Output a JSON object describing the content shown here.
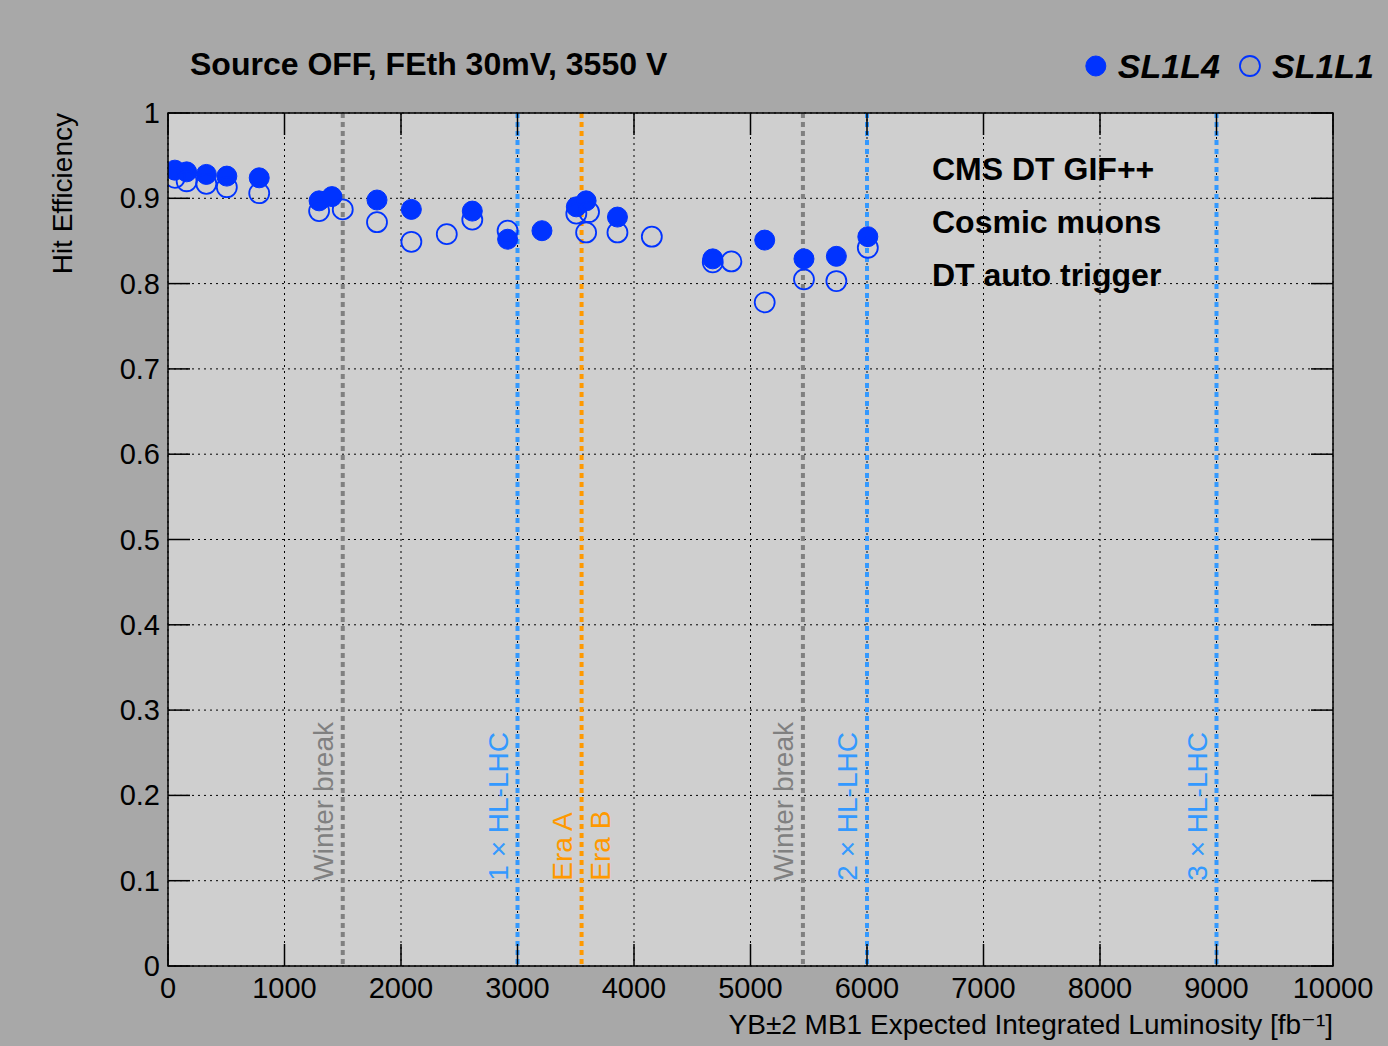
{
  "chart_data": {
    "type": "scatter",
    "title": "Source OFF, FEth 30mV, 3550 V",
    "x_label": "YB±2 MB1 Expected Integrated Luminosity [fb⁻¹]",
    "y_label": "Hit Efficiency",
    "annotations": [
      "CMS DT GIF++",
      "Cosmic muons",
      "DT auto trigger"
    ],
    "xlim": [
      0,
      10000
    ],
    "xticks": [
      0,
      1000,
      2000,
      3000,
      4000,
      5000,
      6000,
      7000,
      8000,
      9000,
      10000
    ],
    "ylim": [
      0,
      1
    ],
    "yticks": [
      0,
      0.1,
      0.2,
      0.3,
      0.4,
      0.5,
      0.6,
      0.7,
      0.8,
      0.9,
      1
    ],
    "grid": true,
    "legend": "top-right",
    "series": [
      {
        "name": "SL1L4",
        "color": "#0033ff",
        "marker": "circle",
        "x": [
          59,
          160,
          329,
          505,
          783,
          1297,
          1407,
          1794,
          2089,
          2612,
          2915,
          3210,
          3505,
          3589,
          3858,
          4676,
          5122,
          5459,
          5737,
          6007
        ],
        "values": [
          0.933,
          0.931,
          0.928,
          0.926,
          0.924,
          0.897,
          0.902,
          0.898,
          0.887,
          0.885,
          0.852,
          0.862,
          0.89,
          0.897,
          0.878,
          0.829,
          0.851,
          0.829,
          0.832,
          0.855
        ]
      },
      {
        "name": "SL1L1",
        "color": "#0033ff",
        "marker": "open_circle",
        "x": [
          59,
          160,
          329,
          505,
          783,
          1297,
          1500,
          1794,
          2089,
          2393,
          2612,
          2915,
          3505,
          3614,
          3589,
          3858,
          4153,
          4676,
          4836,
          5122,
          5459,
          5737,
          6007
        ],
        "values": [
          0.924,
          0.92,
          0.917,
          0.913,
          0.906,
          0.885,
          0.887,
          0.872,
          0.849,
          0.858,
          0.875,
          0.862,
          0.882,
          0.884,
          0.86,
          0.86,
          0.855,
          0.825,
          0.826,
          0.778,
          0.805,
          0.803,
          0.842
        ]
      }
    ],
    "vlines": [
      {
        "x": 1500,
        "color": "#808080",
        "labels": [
          "Winter break"
        ]
      },
      {
        "x": 3000,
        "color": "#3399ff",
        "labels": [
          "1 × HL-LHC"
        ]
      },
      {
        "x": 3550,
        "color": "#ff9900",
        "labels": [
          "Era A",
          "Era B"
        ]
      },
      {
        "x": 5450,
        "color": "#808080",
        "labels": [
          "Winter break"
        ]
      },
      {
        "x": 6000,
        "color": "#3399ff",
        "labels": [
          "2 × HL-LHC"
        ]
      },
      {
        "x": 9000,
        "color": "#3399ff",
        "labels": [
          "3 × HL-LHC"
        ]
      }
    ]
  }
}
